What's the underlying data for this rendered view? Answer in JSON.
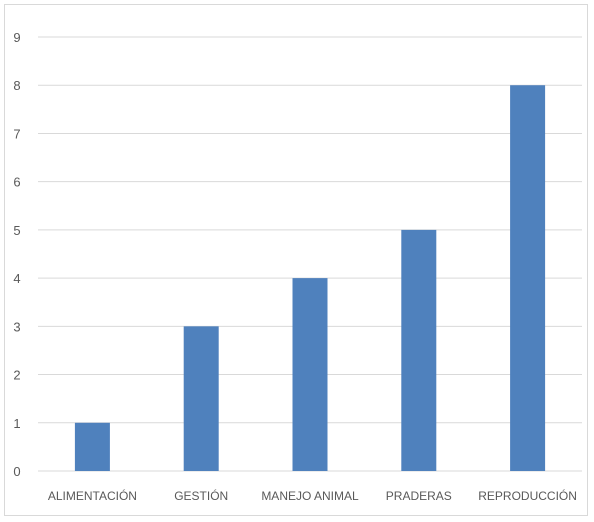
{
  "chart_data": {
    "type": "bar",
    "categories": [
      "ALIMENTACIÓN",
      "GESTIÓN",
      "MANEJO ANIMAL",
      "PRADERAS",
      "REPRODUCCIÓN"
    ],
    "values": [
      1,
      3,
      4,
      5,
      8
    ],
    "title": "",
    "xlabel": "",
    "ylabel": "",
    "ylim": [
      0,
      9
    ],
    "yticks": [
      0,
      1,
      2,
      3,
      4,
      5,
      6,
      7,
      8,
      9
    ],
    "grid": true,
    "legend": "none",
    "bar_color": "#4f81bd",
    "grid_color": "#d9d9d9"
  }
}
